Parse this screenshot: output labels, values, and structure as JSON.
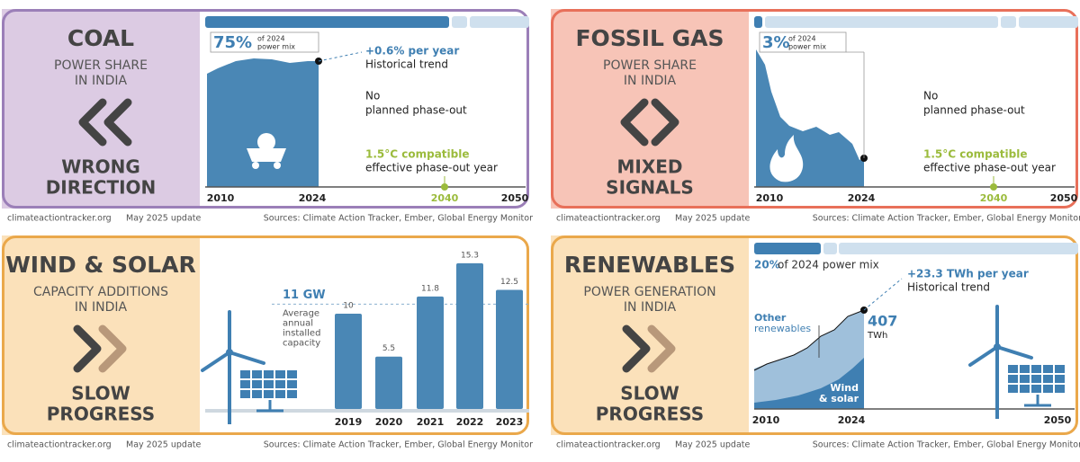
{
  "panels": [
    {
      "title": "COAL",
      "subtitle": [
        "POWER SHARE",
        "IN INDIA"
      ],
      "verdict": [
        "WRONG",
        "DIRECTION"
      ],
      "share": "75%",
      "share_note": [
        "of 2024",
        "power mix"
      ],
      "trend": "+0.6% per year",
      "trend_note": "Historical trend",
      "phaseout": [
        "No",
        "planned phase-out"
      ],
      "compatible": "1.5°C compatible",
      "compatible_note": "effective phase-out year",
      "axis": [
        "2010",
        "2024",
        "2040",
        "2050"
      ]
    },
    {
      "title": "FOSSIL GAS",
      "subtitle": [
        "POWER SHARE",
        "IN INDIA"
      ],
      "verdict": [
        "MIXED",
        "SIGNALS"
      ],
      "share": "3%",
      "share_note": [
        "of 2024",
        "power mix"
      ],
      "phaseout": [
        "No",
        "planned phase-out"
      ],
      "compatible": "1.5°C compatible",
      "compatible_note": "effective phase-out year",
      "axis": [
        "2010",
        "2024",
        "2040",
        "2050"
      ]
    },
    {
      "title": "WIND & SOLAR",
      "subtitle": [
        "CAPACITY ADDITIONS",
        "IN INDIA"
      ],
      "verdict": [
        "SLOW",
        "PROGRESS"
      ],
      "chart": {
        "type": "bar",
        "categories": [
          "2019",
          "2020",
          "2021",
          "2022",
          "2023"
        ],
        "values": [
          10,
          5.5,
          11.8,
          15.3,
          12.5
        ],
        "color": "#4a87b5",
        "reference": {
          "value": 11,
          "label": "11 GW"
        },
        "reference_note": [
          "Average",
          "annual",
          "installed",
          "capacity"
        ]
      }
    },
    {
      "title": "RENEWABLES",
      "subtitle": [
        "POWER GENERATION",
        "IN INDIA"
      ],
      "verdict": [
        "SLOW",
        "PROGRESS"
      ],
      "share": "20%",
      "share_note": [
        "of 2024 power mix"
      ],
      "trend": "+23.3 TWh per year",
      "trend_note": "Historical trend",
      "total": "407",
      "total_unit": "TWh",
      "other_label": [
        "Other",
        "renewables"
      ],
      "ws_label": [
        "Wind",
        "& solar"
      ],
      "axis": [
        "2010",
        "2024",
        "2050"
      ]
    }
  ],
  "footer": {
    "site": "climateactiontracker.org",
    "update": "May 2025 update",
    "sources": "Sources: Climate Action Tracker, Ember, Global Energy Monitor"
  }
}
